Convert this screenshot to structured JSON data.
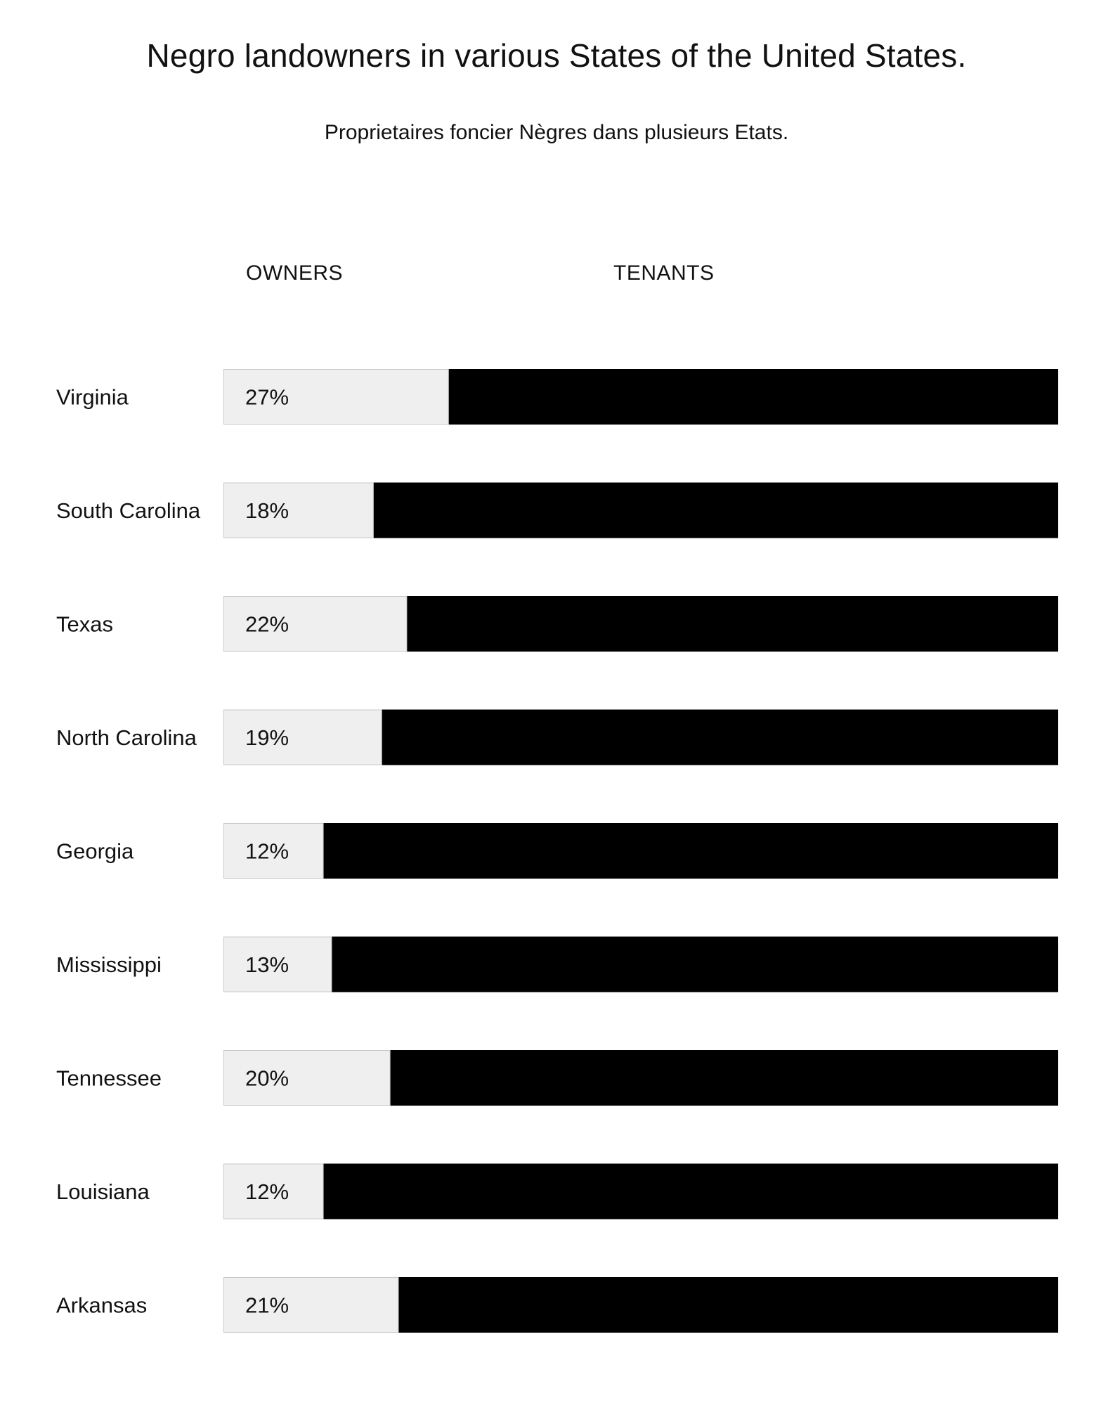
{
  "title": "Negro landowners in various States of the United States.",
  "subtitle": "Proprietaires foncier Nègres dans plusieurs Etats.",
  "headers": {
    "owners": "OWNERS",
    "tenants": "TENANTS"
  },
  "colors": {
    "owners": "#efefef",
    "owners_border": "#c8c8c8",
    "tenants": "#000000"
  },
  "chart_data": {
    "type": "bar",
    "orientation": "horizontal",
    "stacked": true,
    "categories": [
      "Virginia",
      "South Carolina",
      "Texas",
      "North Carolina",
      "Georgia",
      "Mississippi",
      "Tennessee",
      "Louisiana",
      "Arkansas"
    ],
    "series": [
      {
        "name": "OWNERS",
        "values": [
          27,
          18,
          22,
          19,
          12,
          13,
          20,
          12,
          21
        ]
      },
      {
        "name": "TENANTS",
        "values": [
          73,
          82,
          78,
          81,
          88,
          87,
          80,
          88,
          79
        ]
      }
    ],
    "value_labels": [
      "27%",
      "18%",
      "22%",
      "19%",
      "12%",
      "13%",
      "20%",
      "12%",
      "21%"
    ],
    "xlim": [
      0,
      100
    ],
    "grid": false
  }
}
